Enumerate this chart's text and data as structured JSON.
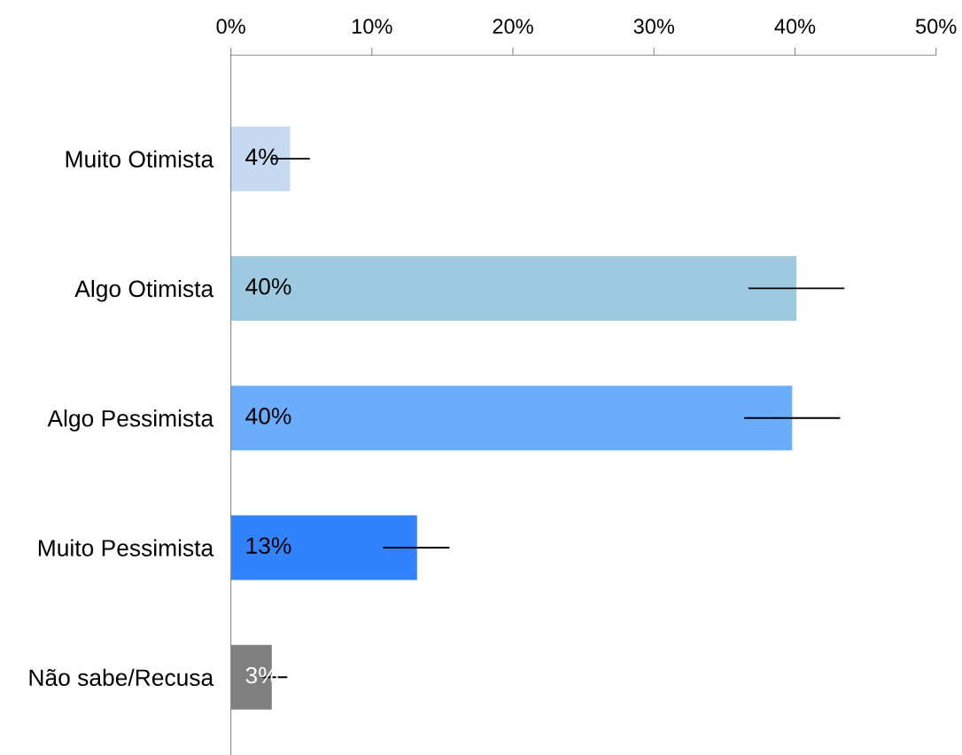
{
  "chart_data": {
    "type": "bar",
    "orientation": "horizontal",
    "categories": [
      "Muito Otimista",
      "Algo Otimista",
      "Algo Pessimista",
      "Muito Pessimista",
      "Não sabe/Recusa"
    ],
    "values": [
      4.2,
      40.1,
      39.8,
      13.2,
      2.9
    ],
    "colors": [
      "#c5daf0",
      "#9ecae1",
      "#6aadfd",
      "#3182fd",
      "#808080"
    ],
    "errors": [
      [
        2.8,
        5.6
      ],
      [
        36.7,
        43.5
      ],
      [
        36.4,
        43.2
      ],
      [
        10.8,
        15.5
      ],
      [
        2.2,
        4.0
      ]
    ],
    "value_labels": [
      "4%",
      "40%",
      "40%",
      "13%",
      "3%"
    ],
    "xlim": [
      0,
      50
    ],
    "xticks": [
      {
        "value": 0,
        "label": "0%"
      },
      {
        "value": 10,
        "label": "10%"
      },
      {
        "value": 20,
        "label": "20%"
      },
      {
        "value": 30,
        "label": "30%"
      },
      {
        "value": 40,
        "label": "40%"
      },
      {
        "value": 50,
        "label": "50%"
      }
    ],
    "grid": false,
    "legend": false
  }
}
